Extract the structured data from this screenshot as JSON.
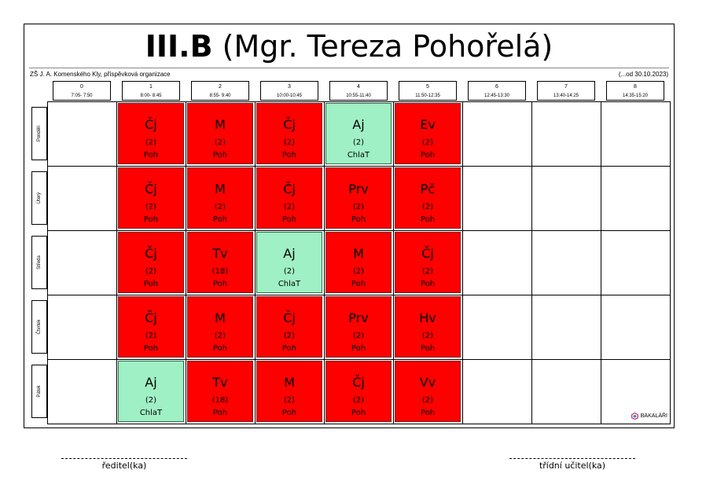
{
  "header": {
    "class_name": "III.B",
    "teacher": "(Mgr. Tereza Pohořelá)",
    "school": "ZŠ J. A. Komenského Kly, příspěvková organizace",
    "validity": "(...od 30.10.2023)"
  },
  "periods": [
    {
      "num": "0",
      "time": "7:05- 7:50"
    },
    {
      "num": "1",
      "time": "8:00- 8:45"
    },
    {
      "num": "2",
      "time": "8:55- 9:40"
    },
    {
      "num": "3",
      "time": "10:00-10:45"
    },
    {
      "num": "4",
      "time": "10:55-11:40"
    },
    {
      "num": "5",
      "time": "11:50-12:35"
    },
    {
      "num": "6",
      "time": "12:45-13:30"
    },
    {
      "num": "7",
      "time": "13:40-14:25"
    },
    {
      "num": "8",
      "time": "14:35-15:20"
    }
  ],
  "days": [
    {
      "name": "Pondělí",
      "lessons": [
        {
          "subject": "Čj",
          "group": "(2)",
          "teacher": "Poh",
          "color": "#ff0000"
        },
        {
          "subject": "M",
          "group": "(2)",
          "teacher": "Poh",
          "color": "#ff0000"
        },
        {
          "subject": "Čj",
          "group": "(2)",
          "teacher": "Poh",
          "color": "#ff0000"
        },
        {
          "subject": "Aj",
          "group": "(2)",
          "teacher": "ChlaT",
          "color": "#9ff0c4"
        },
        {
          "subject": "Ev",
          "group": "(2)",
          "teacher": "Poh",
          "color": "#ff0000"
        }
      ]
    },
    {
      "name": "Úterý",
      "lessons": [
        {
          "subject": "Čj",
          "group": "(2)",
          "teacher": "Poh",
          "color": "#ff0000"
        },
        {
          "subject": "M",
          "group": "(2)",
          "teacher": "Poh",
          "color": "#ff0000"
        },
        {
          "subject": "Čj",
          "group": "(2)",
          "teacher": "Poh",
          "color": "#ff0000"
        },
        {
          "subject": "Prv",
          "group": "(2)",
          "teacher": "Poh",
          "color": "#ff0000"
        },
        {
          "subject": "Pč",
          "group": "(2)",
          "teacher": "Poh",
          "color": "#ff0000"
        }
      ]
    },
    {
      "name": "Středa",
      "lessons": [
        {
          "subject": "Čj",
          "group": "(2)",
          "teacher": "Poh",
          "color": "#ff0000"
        },
        {
          "subject": "Tv",
          "group": "(18)",
          "teacher": "Poh",
          "color": "#ff0000"
        },
        {
          "subject": "Aj",
          "group": "(2)",
          "teacher": "ChlaT",
          "color": "#9ff0c4"
        },
        {
          "subject": "M",
          "group": "(2)",
          "teacher": "Poh",
          "color": "#ff0000"
        },
        {
          "subject": "Čj",
          "group": "(2)",
          "teacher": "Poh",
          "color": "#ff0000"
        }
      ]
    },
    {
      "name": "Čtvrtek",
      "lessons": [
        {
          "subject": "Čj",
          "group": "(2)",
          "teacher": "Poh",
          "color": "#ff0000"
        },
        {
          "subject": "M",
          "group": "(2)",
          "teacher": "Poh",
          "color": "#ff0000"
        },
        {
          "subject": "Čj",
          "group": "(2)",
          "teacher": "Poh",
          "color": "#ff0000"
        },
        {
          "subject": "Prv",
          "group": "(2)",
          "teacher": "Poh",
          "color": "#ff0000"
        },
        {
          "subject": "Hv",
          "group": "(2)",
          "teacher": "Poh",
          "color": "#ff0000"
        }
      ]
    },
    {
      "name": "Pátek",
      "lessons": [
        {
          "subject": "Aj",
          "group": "(2)",
          "teacher": "ChlaT",
          "color": "#9ff0c4"
        },
        {
          "subject": "Tv",
          "group": "(18)",
          "teacher": "Poh",
          "color": "#ff0000"
        },
        {
          "subject": "M",
          "group": "(2)",
          "teacher": "Poh",
          "color": "#ff0000"
        },
        {
          "subject": "Čj",
          "group": "(2)",
          "teacher": "Poh",
          "color": "#ff0000"
        },
        {
          "subject": "Vv",
          "group": "(2)",
          "teacher": "Poh",
          "color": "#ff0000"
        }
      ]
    }
  ],
  "footer": {
    "logo_text": "BAKALÁŘI",
    "logo_icon": "bakalari-logo-icon",
    "signature_left": "ředitel(ka)",
    "signature_right": "třídní učitel(ka)"
  }
}
